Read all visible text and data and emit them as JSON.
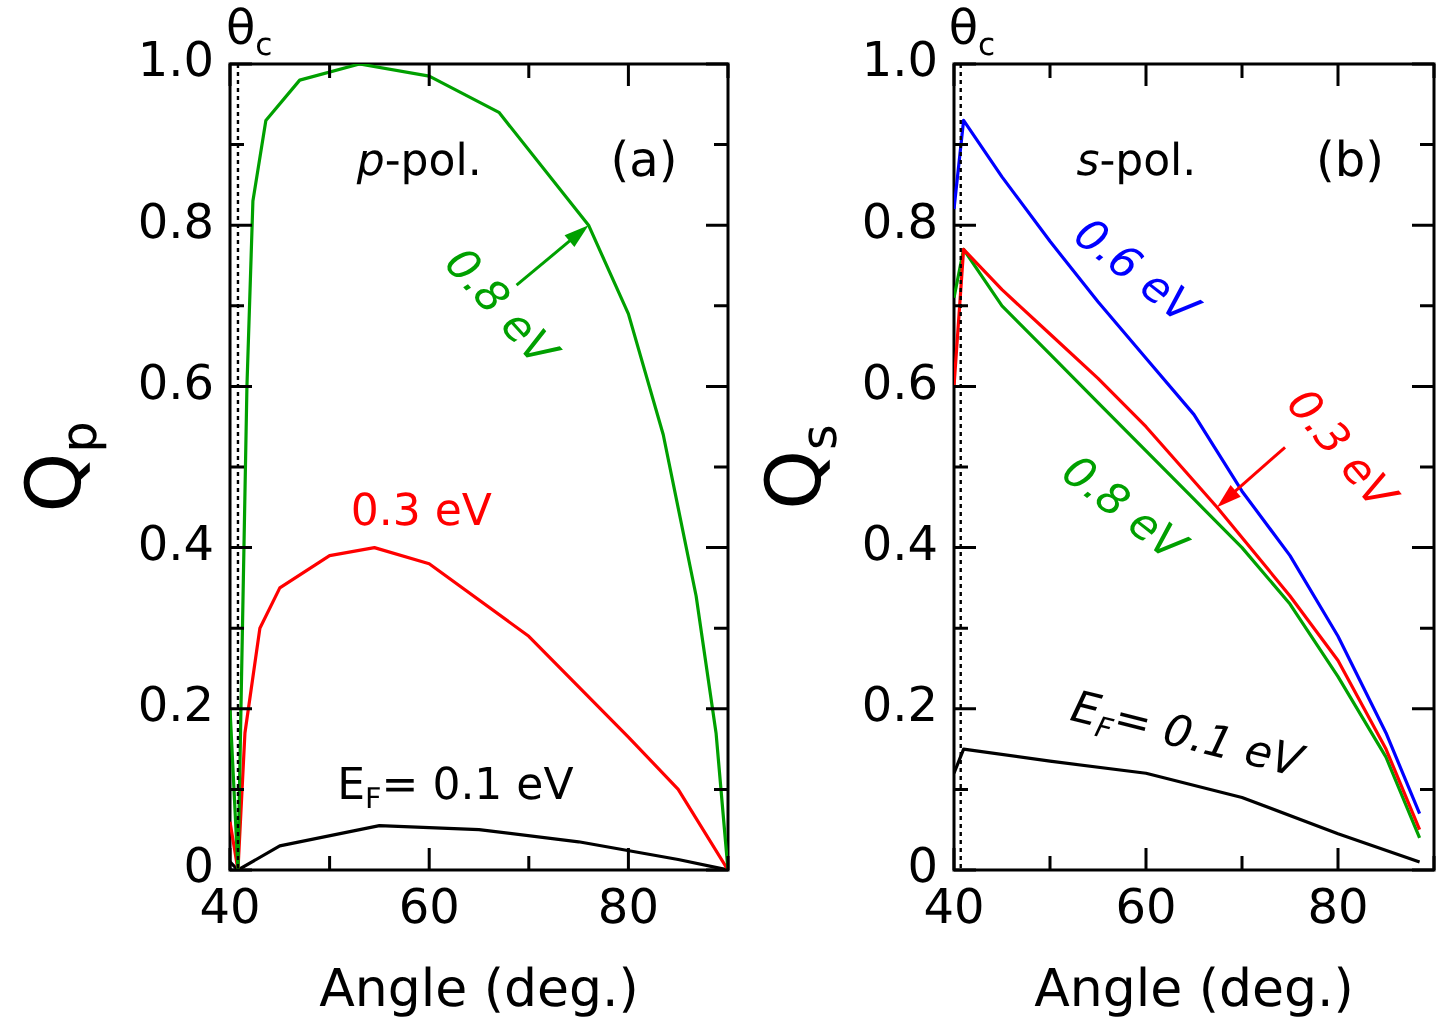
{
  "chart_data": [
    {
      "type": "line",
      "xlabel": "Angle (deg.)",
      "ylabel": "Q$_{p}$",
      "xlim": [
        40,
        90
      ],
      "xticks": [
        40,
        {
          "value": 50,
          "label": null
        },
        60,
        {
          "value": 70,
          "label": null
        },
        80,
        {
          "value": 90,
          "label": null
        }
      ],
      "ylim": [
        0,
        1
      ],
      "yticks": [
        0,
        {
          "value": 0.1,
          "label": null
        },
        0.2,
        {
          "value": 0.3,
          "label": null
        },
        0.4,
        {
          "value": 0.5,
          "label": null
        },
        0.6,
        {
          "value": 0.7,
          "label": null
        },
        0.8,
        {
          "value": 0.9,
          "label": null
        },
        {
          "value": 1,
          "label": "1.0"
        }
      ],
      "series": [
        {
          "color": "#00a000",
          "x": [
            40,
            40.8,
            41.7,
            42.3,
            43.6,
            47,
            53,
            60,
            67,
            76,
            80,
            83.5,
            86.8,
            88.8,
            90
          ],
          "values": [
            0.2,
            0,
            0.6,
            0.83,
            0.93,
            0.98,
            1.0,
            0.985,
            0.94,
            0.8,
            0.69,
            0.54,
            0.34,
            0.17,
            0
          ]
        },
        {
          "color": "#ff0000",
          "x": [
            40,
            40.8,
            41.5,
            43,
            45,
            50,
            54.5,
            60,
            70,
            80,
            85,
            90
          ],
          "values": [
            0.06,
            0,
            0.17,
            0.3,
            0.35,
            0.39,
            0.4,
            0.38,
            0.29,
            0.165,
            0.1,
            0
          ]
        },
        {
          "color": "#000000",
          "x": [
            40,
            40.8,
            45,
            55,
            65,
            75,
            85,
            90
          ],
          "values": [
            0.01,
            0,
            0.03,
            0.055,
            0.05,
            0.035,
            0.013,
            0
          ]
        }
      ],
      "ref_lines": [
        {
          "axis": "x",
          "value": 40.8,
          "label": "θ$_{c}$",
          "line_style": "dotted",
          "color": "#000000"
        }
      ],
      "annotations": [
        "p-pol.",
        "(a)",
        {
          "text": "0.8 eV",
          "x": 76,
          "y": 0.8
        },
        {
          "text": "0.3 eV",
          "x": 55,
          "y": 0.4
        },
        {
          "text": "E$_{F}$= 0.1 eV",
          "x": 55,
          "y": 0.055
        }
      ]
    },
    {
      "type": "line",
      "xlabel": "Angle (deg.)",
      "ylabel": "Q$_{s}$",
      "xlim": [
        40,
        90
      ],
      "xticks": [
        40,
        {
          "value": 50,
          "label": null
        },
        60,
        {
          "value": 70,
          "label": null
        },
        80,
        {
          "value": 90,
          "label": null
        }
      ],
      "ylim": [
        0,
        1
      ],
      "yticks": [
        0,
        {
          "value": 0.1,
          "label": null
        },
        0.2,
        {
          "value": 0.3,
          "label": null
        },
        0.4,
        {
          "value": 0.5,
          "label": null
        },
        0.6,
        {
          "value": 0.7,
          "label": null
        },
        0.8,
        {
          "value": 0.9,
          "label": null
        },
        {
          "value": 1,
          "label": "1.0"
        }
      ],
      "series": [
        {
          "color": "#0000ff",
          "x": [
            40,
            41,
            45,
            50,
            55,
            60,
            65,
            70,
            75,
            80,
            85,
            88.5
          ],
          "values": [
            0.82,
            0.93,
            0.86,
            0.78,
            0.705,
            0.635,
            0.565,
            0.47,
            0.39,
            0.29,
            0.17,
            0.07
          ]
        },
        {
          "color": "#ff0000",
          "x": [
            40,
            41,
            45,
            50,
            55,
            60,
            67.4,
            75,
            80,
            85,
            88.5
          ],
          "values": [
            0.6,
            0.77,
            0.72,
            0.665,
            0.61,
            0.55,
            0.45,
            0.34,
            0.26,
            0.15,
            0.05
          ]
        },
        {
          "color": "#00a000",
          "x": [
            40,
            41,
            45,
            50,
            55,
            60,
            65,
            70,
            75,
            80,
            85,
            88.5
          ],
          "values": [
            0.71,
            0.77,
            0.7,
            0.64,
            0.58,
            0.52,
            0.46,
            0.4,
            0.33,
            0.24,
            0.14,
            0.04
          ]
        },
        {
          "color": "#000000",
          "x": [
            40,
            41,
            50,
            60,
            70,
            80,
            88.5
          ],
          "values": [
            0.12,
            0.15,
            0.135,
            0.12,
            0.09,
            0.045,
            0.01
          ]
        }
      ],
      "ref_lines": [
        {
          "axis": "x",
          "value": 40.7,
          "label": "θ$_{c}$",
          "line_style": "dotted",
          "color": "#000000"
        }
      ],
      "annotations": [
        "s-pol.",
        "(b)",
        {
          "text": "0.6 eV",
          "x": 55,
          "y": 0.705
        },
        {
          "text": "0.3 eV",
          "x": 67.4,
          "y": 0.45
        },
        {
          "text": "0.8 eV",
          "x": 60,
          "y": 0.52
        },
        {
          "text": "E$_{F}$= 0.1 eV",
          "x": 60,
          "y": 0.12
        }
      ]
    }
  ]
}
